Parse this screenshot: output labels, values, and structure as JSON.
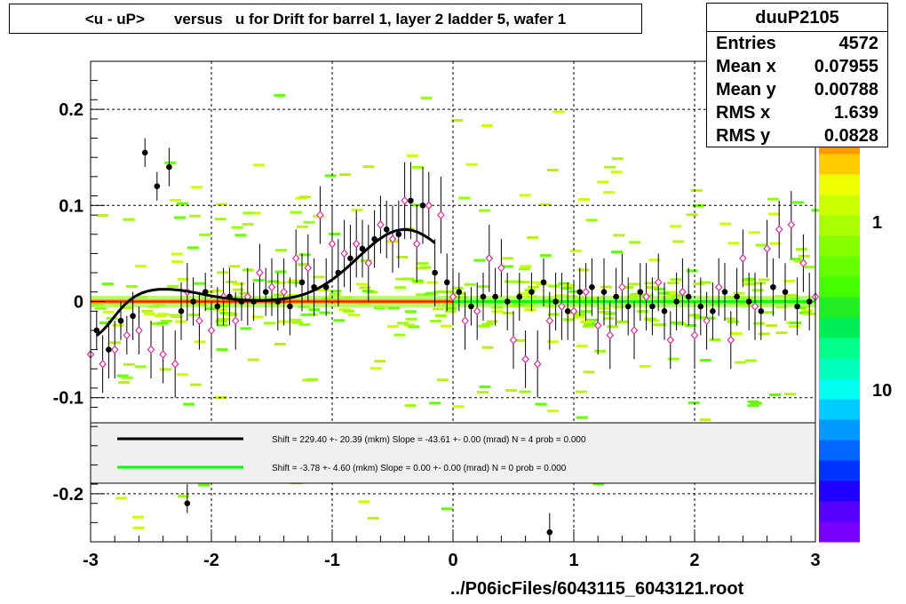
{
  "title": "<u - uP>       versus   u for Drift for barrel 1, layer 2 ladder 5, wafer 1",
  "stats": {
    "name": "duuP2105",
    "rows": [
      {
        "label": "Entries",
        "value": "4572"
      },
      {
        "label": "Mean x",
        "value": "0.07955"
      },
      {
        "label": "Mean y",
        "value": "0.00788"
      },
      {
        "label": "RMS x",
        "value": "1.639"
      },
      {
        "label": "RMS y",
        "value": "0.0828"
      }
    ]
  },
  "footer": "../P06icFiles/6043115_6043121.root",
  "colors": {
    "frame": "#000000",
    "fit_black": "#000000",
    "fit_green": "#00ff00",
    "band_red": "#ff0000",
    "grid": "#000000"
  },
  "chart_data": {
    "type": "scatter",
    "x_range": [
      -3,
      3
    ],
    "y_range": [
      -0.25,
      0.25
    ],
    "x_ticks": [
      "-3",
      "-2",
      "-1",
      "0",
      "1",
      "2",
      "3"
    ],
    "x_tick_values": [
      -3,
      -2,
      -1,
      0,
      1,
      2,
      3
    ],
    "y_ticks": [
      "0.2",
      "0.1",
      "0",
      "-0.1",
      "-0.2"
    ],
    "y_tick_values": [
      0.2,
      0.1,
      0,
      -0.1,
      -0.2
    ],
    "grid": true,
    "colorbar": {
      "labels": [
        "1",
        "10"
      ],
      "label_values": [
        1,
        10
      ],
      "scale": "log"
    },
    "legend": [
      {
        "color": "#000000",
        "text": "Shift =   229.40 +- 20.39 (mkm) Slope =   -43.61 +- 0.00 (mrad)  N = 4 prob = 0.000"
      },
      {
        "color": "#00ff00",
        "text": "Shift =   -3.78 +- 4.60 (mkm) Slope =    0.00 +- 0.00 (mrad)  N = 0 prob = 0.000"
      }
    ],
    "series": [
      {
        "marker": "filled-circle",
        "color": "#000000",
        "x": [
          -2.95,
          -2.85,
          -2.75,
          -2.65,
          -2.55,
          -2.45,
          -2.35,
          -2.25,
          -2.15,
          -2.05,
          -1.95,
          -1.85,
          -1.75,
          -1.65,
          -1.55,
          -1.45,
          -1.35,
          -1.25,
          -1.15,
          -1.05,
          -0.95,
          -0.85,
          -0.75,
          -0.65,
          -0.55,
          -0.45,
          -0.35,
          -0.25,
          -0.15,
          -0.05,
          0.05,
          0.15,
          0.25,
          0.35,
          0.45,
          0.55,
          0.65,
          0.75,
          0.85,
          0.95,
          1.05,
          1.15,
          1.25,
          1.35,
          1.45,
          1.55,
          1.65,
          1.75,
          1.85,
          1.95,
          2.05,
          2.15,
          2.25,
          2.35,
          2.45,
          2.55,
          2.65,
          2.75,
          2.85,
          2.95
        ],
        "y": [
          -0.03,
          -0.05,
          -0.02,
          -0.015,
          0.155,
          0.12,
          0.14,
          -0.01,
          0.0,
          0.01,
          -0.005,
          0.005,
          0.0,
          0.0,
          0.01,
          0.0,
          -0.005,
          0.02,
          0.015,
          0.015,
          0.03,
          0.045,
          0.055,
          0.065,
          0.075,
          0.07,
          0.105,
          0.1,
          0.03,
          0.02,
          0.01,
          -0.005,
          0.005,
          0.005,
          0.0,
          0.005,
          0.01,
          0.02,
          0.0,
          -0.01,
          0.01,
          0.015,
          0.01,
          0.005,
          -0.005,
          0.01,
          -0.005,
          -0.01,
          0.0,
          0.005,
          -0.005,
          -0.01,
          0.01,
          0.005,
          0.0,
          -0.01,
          0.015,
          0.01,
          -0.005,
          0.0
        ],
        "err": [
          0.02,
          0.03,
          0.02,
          0.025,
          0.015,
          0.015,
          0.02,
          0.03,
          0.025,
          0.02,
          0.02,
          0.03,
          0.02,
          0.02,
          0.025,
          0.03,
          0.03,
          0.03,
          0.03,
          0.03,
          0.035,
          0.035,
          0.03,
          0.03,
          0.03,
          0.035,
          0.04,
          0.04,
          0.035,
          0.03,
          0.02,
          0.02,
          0.025,
          0.03,
          0.03,
          0.025,
          0.02,
          0.025,
          0.03,
          0.03,
          0.025,
          0.03,
          0.035,
          0.03,
          0.03,
          0.03,
          0.03,
          0.03,
          0.03,
          0.03,
          0.03,
          0.03,
          0.03,
          0.03,
          0.03,
          0.03,
          0.03,
          0.03,
          0.03,
          0.03
        ]
      },
      {
        "marker": "open-diamond",
        "color": "#cc3399",
        "x": [
          -3.0,
          -2.9,
          -2.8,
          -2.7,
          -2.6,
          -2.5,
          -2.4,
          -2.3,
          -2.2,
          -2.1,
          -2.0,
          -1.9,
          -1.8,
          -1.7,
          -1.6,
          -1.5,
          -1.4,
          -1.3,
          -1.2,
          -1.1,
          -1.0,
          -0.9,
          -0.8,
          -0.7,
          -0.6,
          -0.5,
          -0.4,
          -0.3,
          -0.2,
          -0.1,
          0.0,
          0.1,
          0.2,
          0.3,
          0.4,
          0.5,
          0.6,
          0.7,
          0.8,
          0.9,
          1.0,
          1.1,
          1.2,
          1.3,
          1.4,
          1.5,
          1.6,
          1.7,
          1.8,
          1.9,
          2.0,
          2.1,
          2.2,
          2.3,
          2.4,
          2.5,
          2.6,
          2.7,
          2.8,
          2.9,
          3.0
        ],
        "y": [
          -0.055,
          -0.065,
          -0.05,
          -0.035,
          -0.03,
          -0.05,
          -0.055,
          -0.065,
          0.01,
          -0.02,
          -0.03,
          0.005,
          -0.02,
          0.005,
          0.03,
          0.015,
          0.01,
          0.045,
          0.035,
          0.09,
          0.06,
          0.05,
          0.06,
          0.04,
          0.08,
          0.065,
          0.105,
          0.06,
          0.1,
          0.09,
          0.005,
          -0.02,
          -0.01,
          0.045,
          0.035,
          -0.04,
          -0.06,
          -0.065,
          -0.02,
          -0.005,
          -0.01,
          0.01,
          -0.025,
          -0.035,
          0.015,
          -0.03,
          0.005,
          0.02,
          -0.04,
          0.01,
          -0.035,
          -0.02,
          0.015,
          -0.04,
          0.045,
          -0.005,
          0.055,
          0.075,
          0.08,
          0.04,
          0.005
        ],
        "err": [
          0.02,
          0.03,
          0.03,
          0.02,
          0.025,
          0.03,
          0.03,
          0.035,
          0.03,
          0.03,
          0.03,
          0.03,
          0.03,
          0.03,
          0.03,
          0.03,
          0.035,
          0.03,
          0.035,
          0.03,
          0.04,
          0.035,
          0.035,
          0.04,
          0.03,
          0.035,
          0.04,
          0.04,
          0.035,
          0.04,
          0.03,
          0.03,
          0.03,
          0.035,
          0.03,
          0.03,
          0.03,
          0.035,
          0.03,
          0.035,
          0.03,
          0.03,
          0.03,
          0.035,
          0.035,
          0.03,
          0.035,
          0.03,
          0.03,
          0.035,
          0.035,
          0.03,
          0.03,
          0.03,
          0.03,
          0.035,
          0.03,
          0.03,
          0.035,
          0.03,
          0.03
        ]
      }
    ],
    "outliers": {
      "x": [
        -2.2,
        0.8
      ],
      "y": [
        -0.21,
        -0.24
      ]
    }
  }
}
